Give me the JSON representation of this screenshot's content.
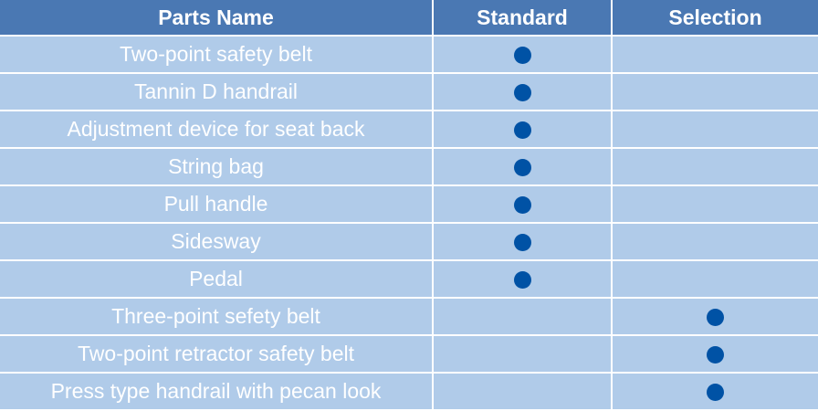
{
  "headers": [
    "Parts Name",
    "Standard",
    "Selection"
  ],
  "colors": {
    "header_bg": "#4a78b3",
    "row_bg": "#b0cbe9",
    "dot": "#0052a5"
  },
  "marker_icon": "filled-circle",
  "rows": [
    {
      "name": "Two-point safety belt",
      "standard": true,
      "selection": false
    },
    {
      "name": "Tannin D handrail",
      "standard": true,
      "selection": false
    },
    {
      "name": "Adjustment device for seat back",
      "standard": true,
      "selection": false
    },
    {
      "name": "String bag",
      "standard": true,
      "selection": false
    },
    {
      "name": "Pull handle",
      "standard": true,
      "selection": false
    },
    {
      "name": "Sidesway",
      "standard": true,
      "selection": false
    },
    {
      "name": "Pedal",
      "standard": true,
      "selection": false
    },
    {
      "name": "Three-point sefety belt",
      "standard": false,
      "selection": true
    },
    {
      "name": "Two-point retractor safety belt",
      "standard": false,
      "selection": true
    },
    {
      "name": "Press type handrail with pecan look",
      "standard": false,
      "selection": true
    }
  ]
}
